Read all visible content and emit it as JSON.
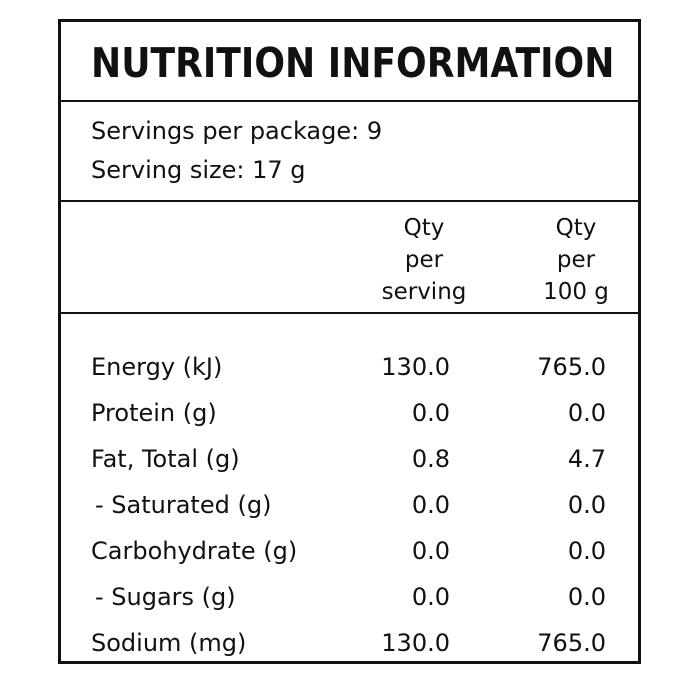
{
  "panel": {
    "title": "NUTRITION INFORMATION",
    "servings_per_package": "Servings per package: 9",
    "serving_size": "Serving size: 17 g",
    "columns": [
      {
        "line1": "Qty",
        "line2": "per",
        "line3": "serving"
      },
      {
        "line1": "Qty",
        "line2": "per",
        "line3": "100 g"
      }
    ],
    "rows": [
      {
        "label": "Energy (kJ)",
        "per_serving": "130.0",
        "per_100g": "765.0"
      },
      {
        "label": "Protein (g)",
        "per_serving": "0.0",
        "per_100g": "0.0"
      },
      {
        "label": "Fat, Total (g)",
        "per_serving": "0.8",
        "per_100g": "4.7"
      },
      {
        "label": "- Saturated (g)",
        "per_serving": "0.0",
        "per_100g": "0.0"
      },
      {
        "label": "Carbohydrate (g)",
        "per_serving": "0.0",
        "per_100g": "0.0"
      },
      {
        "label": "- Sugars (g)",
        "per_serving": "0.0",
        "per_100g": "0.0"
      },
      {
        "label": "Sodium (mg)",
        "per_serving": "130.0",
        "per_100g": "765.0"
      }
    ]
  }
}
